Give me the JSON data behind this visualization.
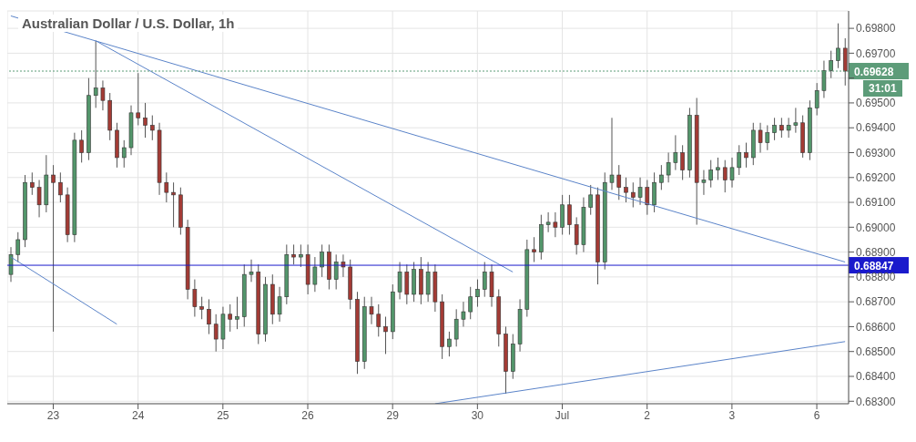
{
  "chart_data": {
    "type": "candlestick",
    "title": "Australian Dollar / U.S. Dollar, 1h",
    "categories": [
      null,
      null,
      null,
      null,
      null,
      null,
      "23",
      null,
      null,
      null,
      null,
      null,
      null,
      null,
      null,
      null,
      null,
      null,
      "24",
      null,
      null,
      null,
      null,
      null,
      null,
      null,
      null,
      null,
      null,
      null,
      "25",
      null,
      null,
      null,
      null,
      null,
      null,
      null,
      null,
      null,
      null,
      null,
      "26",
      null,
      null,
      null,
      null,
      null,
      null,
      null,
      null,
      null,
      null,
      null,
      "29",
      null,
      null,
      null,
      null,
      null,
      null,
      null,
      null,
      null,
      null,
      null,
      "30",
      null,
      null,
      null,
      null,
      null,
      null,
      null,
      null,
      null,
      null,
      null,
      "Jul",
      null,
      null,
      null,
      null,
      null,
      null,
      null,
      null,
      null,
      null,
      null,
      "2",
      null,
      null,
      null,
      null,
      null,
      null,
      null,
      null,
      null,
      null,
      null,
      "3",
      null,
      null,
      null,
      null,
      null,
      null,
      null,
      null,
      null,
      null,
      null,
      "6",
      null,
      null,
      null,
      null
    ],
    "ohlc": [
      [
        0.6881,
        0.6892,
        0.6878,
        0.6889
      ],
      [
        0.6889,
        0.6898,
        0.6886,
        0.6895
      ],
      [
        0.6895,
        0.6921,
        0.6892,
        0.6918
      ],
      [
        0.6918,
        0.6922,
        0.6913,
        0.6916
      ],
      [
        0.6916,
        0.6919,
        0.6904,
        0.6909
      ],
      [
        0.6909,
        0.6929,
        0.6906,
        0.6921
      ],
      [
        0.6921,
        0.6925,
        0.6858,
        0.6918
      ],
      [
        0.6918,
        0.6922,
        0.691,
        0.6913
      ],
      [
        0.6913,
        0.6916,
        0.6894,
        0.6897
      ],
      [
        0.6897,
        0.6938,
        0.6894,
        0.6935
      ],
      [
        0.6935,
        0.6939,
        0.6926,
        0.693
      ],
      [
        0.693,
        0.696,
        0.6927,
        0.6953
      ],
      [
        0.6953,
        0.6975,
        0.6948,
        0.6956
      ],
      [
        0.6956,
        0.6959,
        0.6947,
        0.6951
      ],
      [
        0.6951,
        0.6954,
        0.6935,
        0.6939
      ],
      [
        0.6939,
        0.6942,
        0.6924,
        0.6928
      ],
      [
        0.6928,
        0.6935,
        0.6924,
        0.6932
      ],
      [
        0.6932,
        0.6949,
        0.6929,
        0.6946
      ],
      [
        0.6946,
        0.6962,
        0.6941,
        0.6944
      ],
      [
        0.6944,
        0.695,
        0.6936,
        0.6941
      ],
      [
        0.6941,
        0.6945,
        0.6935,
        0.6939
      ],
      [
        0.6939,
        0.6942,
        0.6913,
        0.6918
      ],
      [
        0.6918,
        0.6922,
        0.691,
        0.6914
      ],
      [
        0.6914,
        0.6918,
        0.69,
        0.6913
      ],
      [
        0.6913,
        0.6916,
        0.6897,
        0.69
      ],
      [
        0.69,
        0.6903,
        0.6871,
        0.6875
      ],
      [
        0.6875,
        0.6879,
        0.6864,
        0.6868
      ],
      [
        0.6868,
        0.6872,
        0.6863,
        0.6867
      ],
      [
        0.6867,
        0.6871,
        0.6857,
        0.6861
      ],
      [
        0.6861,
        0.6865,
        0.685,
        0.6855
      ],
      [
        0.6855,
        0.6868,
        0.6851,
        0.6865
      ],
      [
        0.6865,
        0.6869,
        0.6858,
        0.6863
      ],
      [
        0.6863,
        0.6872,
        0.6859,
        0.6864
      ],
      [
        0.6864,
        0.6885,
        0.686,
        0.6881
      ],
      [
        0.6881,
        0.6887,
        0.6878,
        0.6882
      ],
      [
        0.6882,
        0.6885,
        0.6853,
        0.6857
      ],
      [
        0.6857,
        0.688,
        0.6854,
        0.6877
      ],
      [
        0.6877,
        0.6881,
        0.6861,
        0.6865
      ],
      [
        0.6865,
        0.6876,
        0.6862,
        0.6872
      ],
      [
        0.6872,
        0.6893,
        0.6869,
        0.6889
      ],
      [
        0.6889,
        0.6893,
        0.6885,
        0.6888
      ],
      [
        0.6888,
        0.6893,
        0.6884,
        0.6889
      ],
      [
        0.6889,
        0.6893,
        0.6873,
        0.6877
      ],
      [
        0.6877,
        0.6888,
        0.6874,
        0.6884
      ],
      [
        0.6884,
        0.6893,
        0.688,
        0.689
      ],
      [
        0.689,
        0.6893,
        0.6875,
        0.6879
      ],
      [
        0.6879,
        0.6889,
        0.6875,
        0.6886
      ],
      [
        0.6886,
        0.6889,
        0.688,
        0.6884
      ],
      [
        0.6884,
        0.6887,
        0.6867,
        0.6871
      ],
      [
        0.6871,
        0.6874,
        0.6841,
        0.6846
      ],
      [
        0.6846,
        0.6872,
        0.6843,
        0.6868
      ],
      [
        0.6868,
        0.6872,
        0.6861,
        0.6865
      ],
      [
        0.6865,
        0.6869,
        0.6856,
        0.686
      ],
      [
        0.686,
        0.6864,
        0.6849,
        0.6858
      ],
      [
        0.6858,
        0.6877,
        0.6855,
        0.6874
      ],
      [
        0.6874,
        0.6886,
        0.6871,
        0.6882
      ],
      [
        0.6882,
        0.6885,
        0.6869,
        0.6873
      ],
      [
        0.6873,
        0.6886,
        0.687,
        0.6883
      ],
      [
        0.6883,
        0.6888,
        0.6869,
        0.6873
      ],
      [
        0.6873,
        0.6886,
        0.687,
        0.6882
      ],
      [
        0.6882,
        0.6885,
        0.6866,
        0.687
      ],
      [
        0.687,
        0.6873,
        0.6847,
        0.6852
      ],
      [
        0.6852,
        0.6858,
        0.6848,
        0.6855
      ],
      [
        0.6855,
        0.6867,
        0.6852,
        0.6863
      ],
      [
        0.6863,
        0.687,
        0.686,
        0.6866
      ],
      [
        0.6866,
        0.6876,
        0.6863,
        0.6872
      ],
      [
        0.6872,
        0.6879,
        0.6868,
        0.6875
      ],
      [
        0.6875,
        0.6886,
        0.6872,
        0.6882
      ],
      [
        0.6882,
        0.6885,
        0.6868,
        0.6872
      ],
      [
        0.6872,
        0.6875,
        0.6852,
        0.6857
      ],
      [
        0.6857,
        0.686,
        0.6833,
        0.6842
      ],
      [
        0.6842,
        0.6857,
        0.6839,
        0.6853
      ],
      [
        0.6853,
        0.6871,
        0.685,
        0.6867
      ],
      [
        0.6867,
        0.6895,
        0.6864,
        0.6891
      ],
      [
        0.6891,
        0.6896,
        0.6886,
        0.689
      ],
      [
        0.689,
        0.6905,
        0.6887,
        0.6901
      ],
      [
        0.6901,
        0.6906,
        0.6898,
        0.6902
      ],
      [
        0.6902,
        0.6906,
        0.6896,
        0.69
      ],
      [
        0.69,
        0.6913,
        0.6897,
        0.6909
      ],
      [
        0.6909,
        0.6913,
        0.6897,
        0.6901
      ],
      [
        0.6901,
        0.6904,
        0.6889,
        0.6893
      ],
      [
        0.6893,
        0.6912,
        0.689,
        0.6908
      ],
      [
        0.6908,
        0.6917,
        0.6905,
        0.6913
      ],
      [
        0.6913,
        0.6916,
        0.6877,
        0.6886
      ],
      [
        0.6886,
        0.6922,
        0.6883,
        0.6918
      ],
      [
        0.6918,
        0.6944,
        0.6915,
        0.6921
      ],
      [
        0.6921,
        0.6925,
        0.6911,
        0.6916
      ],
      [
        0.6916,
        0.692,
        0.691,
        0.6914
      ],
      [
        0.6914,
        0.6918,
        0.6908,
        0.6912
      ],
      [
        0.6912,
        0.692,
        0.6909,
        0.6916
      ],
      [
        0.6916,
        0.6919,
        0.6905,
        0.6909
      ],
      [
        0.6909,
        0.6922,
        0.6906,
        0.6918
      ],
      [
        0.6918,
        0.6925,
        0.6915,
        0.6921
      ],
      [
        0.6921,
        0.693,
        0.6918,
        0.6926
      ],
      [
        0.6926,
        0.6937,
        0.6923,
        0.693
      ],
      [
        0.693,
        0.6933,
        0.6919,
        0.6923
      ],
      [
        0.6923,
        0.6948,
        0.692,
        0.6945
      ],
      [
        0.6945,
        0.6952,
        0.6901,
        0.6918
      ],
      [
        0.6918,
        0.6923,
        0.6913,
        0.6919
      ],
      [
        0.6919,
        0.6927,
        0.6916,
        0.6923
      ],
      [
        0.6923,
        0.6928,
        0.6919,
        0.6924
      ],
      [
        0.6924,
        0.6927,
        0.6914,
        0.6919
      ],
      [
        0.6919,
        0.6928,
        0.6916,
        0.6924
      ],
      [
        0.6924,
        0.6933,
        0.6921,
        0.693
      ],
      [
        0.693,
        0.6934,
        0.6924,
        0.6928
      ],
      [
        0.6928,
        0.6942,
        0.6925,
        0.6939
      ],
      [
        0.6939,
        0.6942,
        0.693,
        0.6934
      ],
      [
        0.6934,
        0.6941,
        0.6931,
        0.6938
      ],
      [
        0.6938,
        0.6944,
        0.6935,
        0.6941
      ],
      [
        0.6941,
        0.6944,
        0.6936,
        0.6939
      ],
      [
        0.6939,
        0.6944,
        0.6936,
        0.6941
      ],
      [
        0.6941,
        0.6948,
        0.6938,
        0.6942
      ],
      [
        0.6942,
        0.6945,
        0.6928,
        0.693
      ],
      [
        0.693,
        0.6951,
        0.6927,
        0.6948
      ],
      [
        0.6948,
        0.6958,
        0.6945,
        0.6955
      ],
      [
        0.6955,
        0.6967,
        0.6952,
        0.6963
      ],
      [
        0.6963,
        0.6971,
        0.696,
        0.6967
      ],
      [
        0.6967,
        0.6982,
        0.6964,
        0.6972
      ],
      [
        0.6972,
        0.6976,
        0.6957,
        0.69628
      ]
    ],
    "colors": [
      "#53966b",
      "#53966b",
      "#53966b",
      "#a33b35",
      "#a33b35",
      "#53966b",
      "#a33b35",
      "#a33b35",
      "#a33b35",
      "#53966b",
      "#a33b35",
      "#53966b",
      "#53966b",
      "#a33b35",
      "#a33b35",
      "#a33b35",
      "#53966b",
      "#53966b",
      "#a33b35",
      "#a33b35",
      "#a33b35",
      "#a33b35",
      "#a33b35",
      "#a33b35",
      "#a33b35",
      "#a33b35",
      "#a33b35",
      "#a33b35",
      "#a33b35",
      "#a33b35",
      "#53966b",
      "#a33b35",
      "#53966b",
      "#53966b",
      "#53966b",
      "#a33b35",
      "#53966b",
      "#a33b35",
      "#53966b",
      "#53966b",
      "#a33b35",
      "#53966b",
      "#a33b35",
      "#53966b",
      "#53966b",
      "#a33b35",
      "#53966b",
      "#a33b35",
      "#a33b35",
      "#a33b35",
      "#53966b",
      "#a33b35",
      "#a33b35",
      "#a33b35",
      "#53966b",
      "#53966b",
      "#a33b35",
      "#53966b",
      "#a33b35",
      "#53966b",
      "#a33b35",
      "#a33b35",
      "#53966b",
      "#53966b",
      "#53966b",
      "#53966b",
      "#53966b",
      "#53966b",
      "#a33b35",
      "#a33b35",
      "#a33b35",
      "#53966b",
      "#53966b",
      "#53966b",
      "#a33b35",
      "#53966b",
      "#53966b",
      "#a33b35",
      "#53966b",
      "#a33b35",
      "#a33b35",
      "#53966b",
      "#53966b",
      "#a33b35",
      "#53966b",
      "#53966b",
      "#a33b35",
      "#a33b35",
      "#a33b35",
      "#53966b",
      "#a33b35",
      "#53966b",
      "#53966b",
      "#53966b",
      "#53966b",
      "#a33b35",
      "#53966b",
      "#a33b35",
      "#53966b",
      "#53966b",
      "#53966b",
      "#a33b35",
      "#53966b",
      "#53966b",
      "#a33b35",
      "#53966b",
      "#a33b35",
      "#53966b",
      "#53966b",
      "#a33b35",
      "#53966b",
      "#53966b",
      "#a33b35",
      "#53966b",
      "#53966b",
      "#53966b",
      "#53966b",
      "#53966b",
      "#a33b35"
    ],
    "series": [
      {
        "type": "line",
        "color": "#5b84c9",
        "values": [
          0.6985,
          null,
          null,
          null,
          null,
          null,
          null,
          null,
          null,
          null,
          null,
          null,
          null,
          null,
          null,
          null,
          null,
          null,
          null,
          null,
          null,
          null,
          null,
          null,
          null,
          null,
          null,
          null,
          null,
          null,
          null,
          null,
          null,
          null,
          null,
          null,
          null,
          null,
          null,
          null,
          null,
          null,
          null,
          null,
          null,
          null,
          null,
          null,
          null,
          null,
          null,
          null,
          null,
          null,
          null,
          null,
          null,
          null,
          null,
          null,
          null,
          null,
          null,
          null,
          null,
          null,
          null,
          null,
          null,
          null,
          null,
          null,
          null,
          null,
          null,
          null,
          null,
          null,
          null,
          null,
          null,
          null,
          null,
          null,
          null,
          null,
          null,
          null,
          null,
          null,
          null,
          null,
          null,
          null,
          null,
          null,
          null,
          null,
          null,
          null,
          null,
          null,
          null,
          null,
          null,
          null,
          null,
          null,
          null,
          null,
          null,
          null,
          null,
          null,
          null,
          null,
          null,
          null,
          0.6886
        ]
      },
      {
        "type": "line",
        "color": "#5b84c9",
        "values": [
          null,
          null,
          null,
          null,
          null,
          null,
          null,
          null,
          null,
          null,
          null,
          null,
          0.6975,
          null,
          null,
          null,
          null,
          null,
          null,
          null,
          null,
          null,
          null,
          null,
          null,
          null,
          null,
          null,
          null,
          null,
          null,
          null,
          null,
          null,
          null,
          null,
          null,
          null,
          null,
          null,
          null,
          null,
          null,
          null,
          null,
          null,
          null,
          null,
          null,
          null,
          null,
          null,
          null,
          null,
          null,
          null,
          null,
          null,
          null,
          null,
          null,
          null,
          null,
          null,
          null,
          null,
          null,
          null,
          null,
          null,
          null,
          0.6882,
          null,
          null,
          null,
          null,
          null,
          null,
          null,
          null,
          null,
          null,
          null,
          null,
          null,
          null,
          null,
          null,
          null,
          null,
          null,
          null,
          null,
          null,
          null,
          null,
          null,
          null,
          null,
          null,
          null,
          null,
          null,
          null,
          null,
          null,
          null,
          null,
          null,
          null,
          null,
          null,
          null,
          null,
          null,
          null,
          null,
          null,
          null
        ]
      },
      {
        "type": "line",
        "color": "#5b84c9",
        "values": [
          0.6888,
          null,
          null,
          null,
          null,
          null,
          null,
          null,
          null,
          null,
          null,
          null,
          null,
          null,
          null,
          0.6861,
          null,
          null,
          null,
          null,
          null,
          null,
          null,
          null,
          null,
          null,
          null,
          null,
          null,
          null,
          null,
          null,
          null,
          null,
          null,
          null,
          null,
          null,
          null,
          null,
          null,
          null,
          null,
          null,
          null,
          null,
          null,
          null,
          null,
          null,
          null,
          null,
          null,
          null,
          null,
          null,
          null,
          null,
          null,
          null,
          null,
          null,
          null,
          null,
          null,
          null,
          null,
          null,
          null,
          null,
          null,
          null,
          null,
          null,
          null,
          null,
          null,
          null,
          null,
          null,
          null,
          null,
          null,
          null,
          null,
          null,
          null,
          null,
          null,
          null,
          null,
          null,
          null,
          null,
          null,
          null,
          null,
          null,
          null,
          null,
          null,
          null,
          null,
          null,
          null,
          null,
          null,
          null,
          null,
          null,
          null,
          null,
          null,
          null,
          null,
          null,
          null,
          null,
          null
        ]
      },
      {
        "type": "line",
        "color": "#5b84c9",
        "values": [
          null,
          null,
          null,
          null,
          null,
          null,
          null,
          null,
          null,
          null,
          null,
          null,
          null,
          null,
          null,
          null,
          null,
          null,
          null,
          null,
          null,
          null,
          null,
          null,
          null,
          null,
          null,
          null,
          null,
          null,
          null,
          null,
          null,
          null,
          null,
          null,
          null,
          null,
          null,
          null,
          null,
          null,
          null,
          null,
          null,
          null,
          null,
          null,
          null,
          null,
          null,
          null,
          null,
          null,
          null,
          null,
          null,
          null,
          null,
          null,
          0.6829,
          null,
          null,
          null,
          null,
          null,
          null,
          null,
          null,
          null,
          null,
          null,
          null,
          null,
          null,
          null,
          null,
          null,
          null,
          null,
          null,
          null,
          null,
          null,
          null,
          null,
          null,
          null,
          null,
          null,
          null,
          null,
          null,
          null,
          null,
          null,
          null,
          null,
          null,
          null,
          null,
          null,
          null,
          null,
          null,
          null,
          null,
          null,
          null,
          null,
          null,
          null,
          null,
          null,
          null,
          null,
          null,
          null,
          0.6854
        ]
      }
    ],
    "ylim": [
      0.6829,
      0.6987
    ],
    "yticks": [
      {
        "value": 0.683,
        "label": "0.68300"
      },
      {
        "value": 0.684,
        "label": "0.68400"
      },
      {
        "value": 0.685,
        "label": "0.68500"
      },
      {
        "value": 0.686,
        "label": "0.68600"
      },
      {
        "value": 0.687,
        "label": "0.68700"
      },
      {
        "value": 0.688,
        "label": "0.68800"
      },
      {
        "value": 0.689,
        "label": "0.68900"
      },
      {
        "value": 0.69,
        "label": "0.69000"
      },
      {
        "value": 0.691,
        "label": "0.69100"
      },
      {
        "value": 0.692,
        "label": "0.69200"
      },
      {
        "value": 0.693,
        "label": "0.69300"
      },
      {
        "value": 0.694,
        "label": "0.69400"
      },
      {
        "value": 0.695,
        "label": "0.69500"
      },
      {
        "value": 0.696,
        "label": null
      },
      {
        "value": 0.697,
        "label": "0.69700"
      },
      {
        "value": 0.698,
        "label": "0.69800"
      }
    ],
    "ref_lines": [
      {
        "axis": "y",
        "value": 0.68847,
        "label": "0.68847",
        "color": "#1a1acc",
        "line_style": "solid"
      },
      {
        "axis": "y",
        "value": 0.69628,
        "label": "0.69628",
        "color": "#5d9c79",
        "line_style": "dotted"
      }
    ],
    "annotations": [
      "31:01"
    ],
    "grid": true
  }
}
